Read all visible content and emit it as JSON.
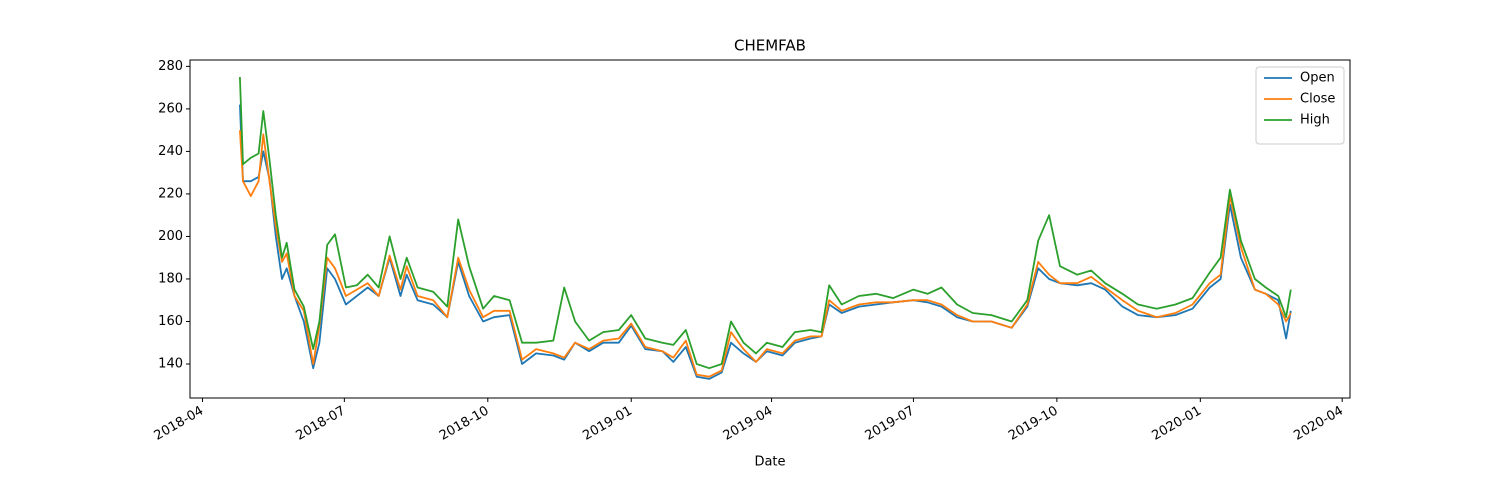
{
  "chart_data": {
    "type": "line",
    "title": "CHEMFAB",
    "xlabel": "Date",
    "x": [
      "2018-04-25",
      "2018-04-27",
      "2018-05-02",
      "2018-05-07",
      "2018-05-10",
      "2018-05-14",
      "2018-05-18",
      "2018-05-22",
      "2018-05-25",
      "2018-05-30",
      "2018-06-05",
      "2018-06-11",
      "2018-06-15",
      "2018-06-20",
      "2018-06-25",
      "2018-07-02",
      "2018-07-09",
      "2018-07-16",
      "2018-07-23",
      "2018-07-30",
      "2018-08-06",
      "2018-08-10",
      "2018-08-17",
      "2018-08-27",
      "2018-09-05",
      "2018-09-12",
      "2018-09-19",
      "2018-09-28",
      "2018-10-05",
      "2018-10-15",
      "2018-10-23",
      "2018-11-01",
      "2018-11-12",
      "2018-11-19",
      "2018-11-26",
      "2018-12-05",
      "2018-12-14",
      "2018-12-24",
      "2019-01-01",
      "2019-01-10",
      "2019-01-21",
      "2019-01-28",
      "2019-02-05",
      "2019-02-12",
      "2019-02-20",
      "2019-02-28",
      "2019-03-06",
      "2019-03-14",
      "2019-03-22",
      "2019-03-29",
      "2019-04-08",
      "2019-04-16",
      "2019-04-26",
      "2019-05-03",
      "2019-05-08",
      "2019-05-16",
      "2019-05-27",
      "2019-06-07",
      "2019-06-18",
      "2019-07-01",
      "2019-07-10",
      "2019-07-19",
      "2019-07-29",
      "2019-08-08",
      "2019-08-20",
      "2019-09-02",
      "2019-09-12",
      "2019-09-19",
      "2019-09-26",
      "2019-10-03",
      "2019-10-14",
      "2019-10-23",
      "2019-11-01",
      "2019-11-12",
      "2019-11-22",
      "2019-12-04",
      "2019-12-16",
      "2019-12-27",
      "2020-01-07",
      "2020-01-14",
      "2020-01-20",
      "2020-01-27",
      "2020-02-05",
      "2020-02-12",
      "2020-02-20",
      "2020-02-25",
      "2020-02-28"
    ],
    "series": [
      {
        "name": "Open",
        "color": "#1f77b4",
        "values": [
          262,
          226,
          226,
          228,
          240,
          227,
          200,
          180,
          185,
          172,
          160,
          138,
          150,
          185,
          180,
          168,
          172,
          176,
          172,
          190,
          172,
          182,
          170,
          168,
          162,
          188,
          172,
          160,
          162,
          163,
          140,
          145,
          144,
          142,
          150,
          146,
          150,
          150,
          158,
          147,
          146,
          141,
          148,
          134,
          133,
          136,
          150,
          145,
          141,
          146,
          144,
          150,
          152,
          153,
          168,
          164,
          167,
          168,
          169,
          170,
          169,
          167,
          162,
          160,
          160,
          157,
          167,
          185,
          180,
          178,
          177,
          178,
          175,
          167,
          163,
          162,
          163,
          166,
          176,
          180,
          215,
          190,
          175,
          173,
          170,
          152,
          165
        ]
      },
      {
        "name": "Close",
        "color": "#ff7f0e",
        "values": [
          250,
          226,
          219,
          226,
          248,
          226,
          205,
          188,
          192,
          172,
          165,
          140,
          158,
          190,
          185,
          172,
          175,
          178,
          172,
          191,
          175,
          186,
          172,
          170,
          162,
          190,
          175,
          162,
          165,
          165,
          142,
          147,
          145,
          143,
          150,
          147,
          151,
          152,
          159,
          148,
          146,
          143,
          151,
          135,
          134,
          137,
          155,
          147,
          141,
          147,
          145,
          151,
          153,
          153,
          170,
          165,
          168,
          169,
          169,
          170,
          170,
          168,
          163,
          160,
          160,
          157,
          168,
          188,
          182,
          178,
          178,
          181,
          176,
          170,
          165,
          162,
          164,
          168,
          178,
          182,
          219,
          195,
          175,
          173,
          168,
          160,
          164
        ]
      },
      {
        "name": "High",
        "color": "#2ca02c",
        "values": [
          275,
          234,
          237,
          239,
          259,
          236,
          210,
          190,
          197,
          175,
          167,
          147,
          160,
          196,
          201,
          176,
          177,
          182,
          176,
          200,
          180,
          190,
          176,
          174,
          167,
          208,
          186,
          166,
          172,
          170,
          150,
          150,
          151,
          176,
          160,
          151,
          155,
          156,
          163,
          152,
          150,
          149,
          156,
          140,
          138,
          140,
          160,
          150,
          145,
          150,
          148,
          155,
          156,
          155,
          177,
          168,
          172,
          173,
          171,
          175,
          173,
          176,
          168,
          164,
          163,
          160,
          170,
          198,
          210,
          186,
          182,
          184,
          178,
          173,
          168,
          166,
          168,
          171,
          183,
          190,
          222,
          198,
          180,
          176,
          172,
          162,
          175
        ]
      }
    ],
    "xlim": [
      "2018-03-24",
      "2020-04-06"
    ],
    "xticks": [
      {
        "value": "2018-04-01",
        "label": "2018-04"
      },
      {
        "value": "2018-07-01",
        "label": "2018-07"
      },
      {
        "value": "2018-10-01",
        "label": "2018-10"
      },
      {
        "value": "2019-01-01",
        "label": "2019-01"
      },
      {
        "value": "2019-04-01",
        "label": "2019-04"
      },
      {
        "value": "2019-07-01",
        "label": "2019-07"
      },
      {
        "value": "2019-10-01",
        "label": "2019-10"
      },
      {
        "value": "2020-01-01",
        "label": "2020-01"
      },
      {
        "value": "2020-04-01",
        "label": "2020-04"
      }
    ],
    "ylim": [
      124,
      283
    ],
    "yticks": [
      140,
      160,
      180,
      200,
      220,
      240,
      260,
      280
    ],
    "legend": "upper right",
    "grid": false
  }
}
